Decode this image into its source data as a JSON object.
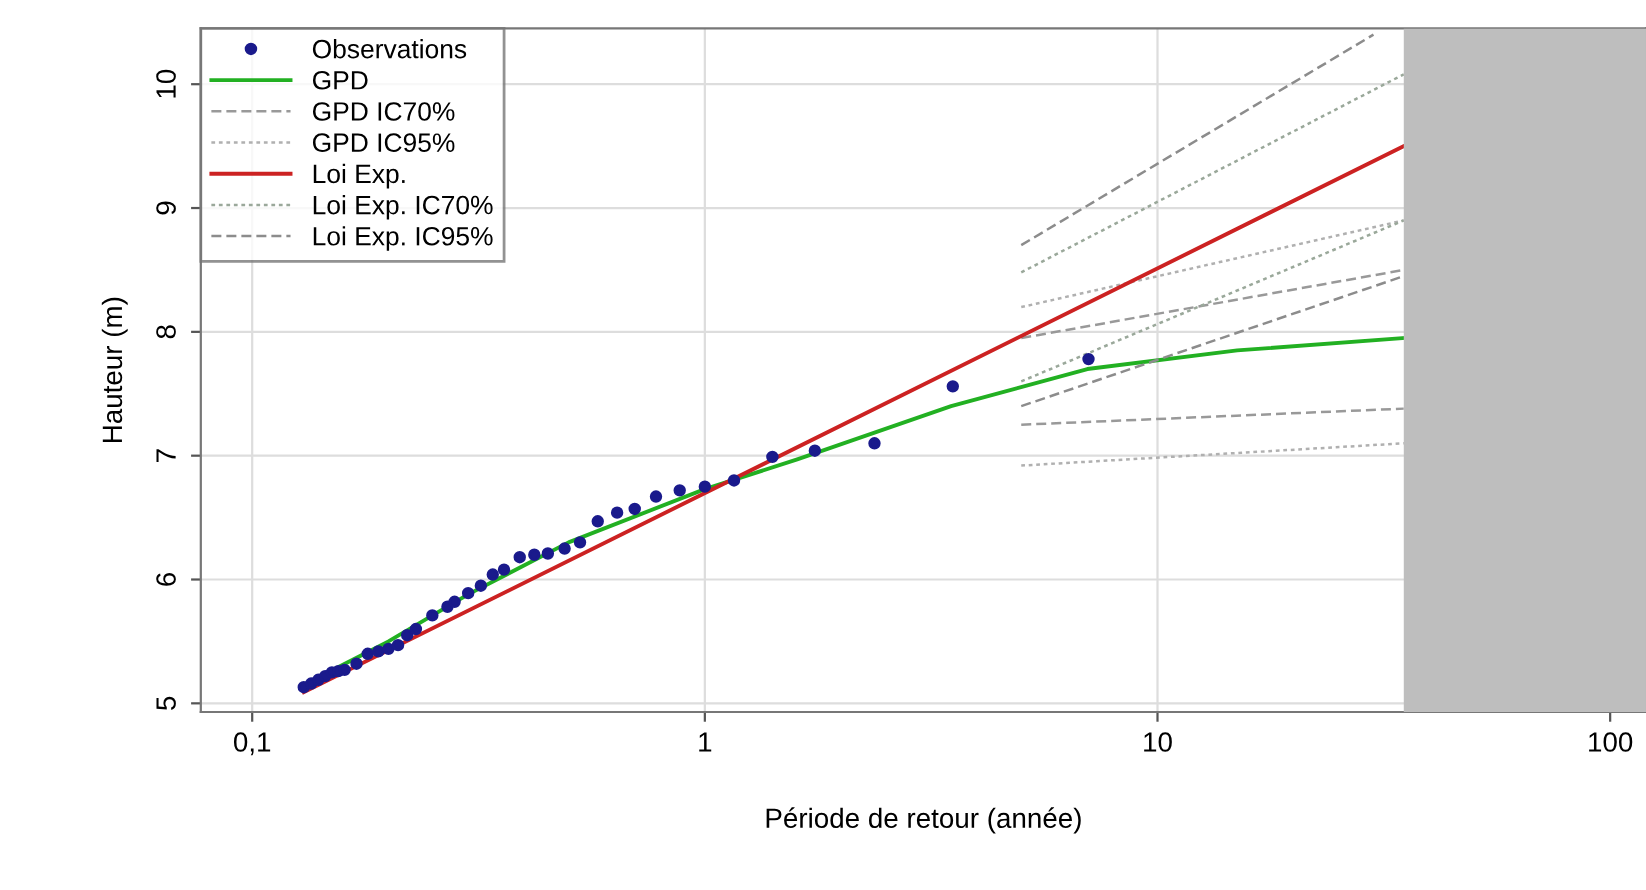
{
  "chart_data": {
    "type": "line",
    "xlabel": "Période de retour (année)",
    "ylabel": "Hauteur (m)",
    "log": "x",
    "xlim": [
      0.077,
      120
    ],
    "ylim": [
      4.93,
      10.45
    ],
    "xticks": [
      {
        "value": 0.1,
        "label": "0,1"
      },
      1,
      10,
      100
    ],
    "yticks": [
      5,
      6,
      7,
      8,
      9,
      10
    ],
    "grid": true,
    "legend": "top left",
    "bands": [
      {
        "axis": "x",
        "from": 35,
        "to": 120,
        "color": "#bebebe"
      }
    ],
    "series": [
      {
        "name": "Observations",
        "type": "scatter",
        "marker": "circle",
        "color": "#1a1a8c",
        "x": [
          0.13,
          0.135,
          0.14,
          0.145,
          0.15,
          0.155,
          0.16,
          0.17,
          0.18,
          0.19,
          0.2,
          0.21,
          0.22,
          0.23,
          0.25,
          0.27,
          0.28,
          0.3,
          0.32,
          0.34,
          0.36,
          0.39,
          0.42,
          0.45,
          0.49,
          0.53,
          0.58,
          0.64,
          0.7,
          0.78,
          0.88,
          1.0,
          1.16,
          1.41,
          1.75,
          2.37,
          3.53,
          7.04
        ],
        "values": [
          5.13,
          5.16,
          5.19,
          5.22,
          5.25,
          5.26,
          5.27,
          5.32,
          5.4,
          5.42,
          5.44,
          5.47,
          5.55,
          5.6,
          5.71,
          5.78,
          5.82,
          5.89,
          5.95,
          6.04,
          6.08,
          6.18,
          6.2,
          6.21,
          6.25,
          6.3,
          6.47,
          6.54,
          6.57,
          6.67,
          6.72,
          6.75,
          6.8,
          6.99,
          7.04,
          7.1,
          7.56,
          7.78
        ]
      },
      {
        "name": "GPD",
        "color": "#22b022",
        "x": [
          0.13,
          0.2,
          0.3,
          0.5,
          1,
          1.6,
          3.5,
          7,
          15,
          35
        ],
        "values": [
          5.15,
          5.5,
          5.88,
          6.3,
          6.73,
          6.97,
          7.4,
          7.7,
          7.85,
          7.95
        ]
      },
      {
        "name": "GPD IC70%",
        "line_style": "dashed",
        "color": "#999999",
        "x": [
          5,
          35
        ],
        "values": [
          7.95,
          8.5
        ]
      },
      {
        "line_style": "dashed",
        "color": "#999999",
        "x": [
          5,
          35
        ],
        "values": [
          7.25,
          7.38
        ]
      },
      {
        "name": "GPD IC95%",
        "line_style": "dotted",
        "color": "#b0b0b0",
        "x": [
          5,
          35
        ],
        "values": [
          8.2,
          8.9
        ]
      },
      {
        "line_style": "dotted",
        "color": "#b0b0b0",
        "x": [
          5,
          35
        ],
        "values": [
          6.92,
          7.1
        ]
      },
      {
        "name": "Loi Exp.",
        "color": "#cc2222",
        "x": [
          0.13,
          35
        ],
        "values": [
          5.09,
          9.5
        ]
      },
      {
        "name": "Loi Exp. IC70%",
        "line_style": "dotted",
        "color": "#9aa89a",
        "x": [
          5,
          35
        ],
        "values": [
          8.48,
          10.08
        ]
      },
      {
        "line_style": "dotted",
        "color": "#9aa89a",
        "x": [
          5,
          35
        ],
        "values": [
          7.6,
          8.9
        ]
      },
      {
        "name": "Loi Exp. IC95%",
        "line_style": "dashed",
        "color": "#8c8c8c",
        "x": [
          5,
          30
        ],
        "values": [
          8.7,
          10.4
        ]
      },
      {
        "line_style": "dashed",
        "color": "#8c8c8c",
        "x": [
          5,
          35
        ],
        "values": [
          7.4,
          8.45
        ]
      }
    ]
  }
}
